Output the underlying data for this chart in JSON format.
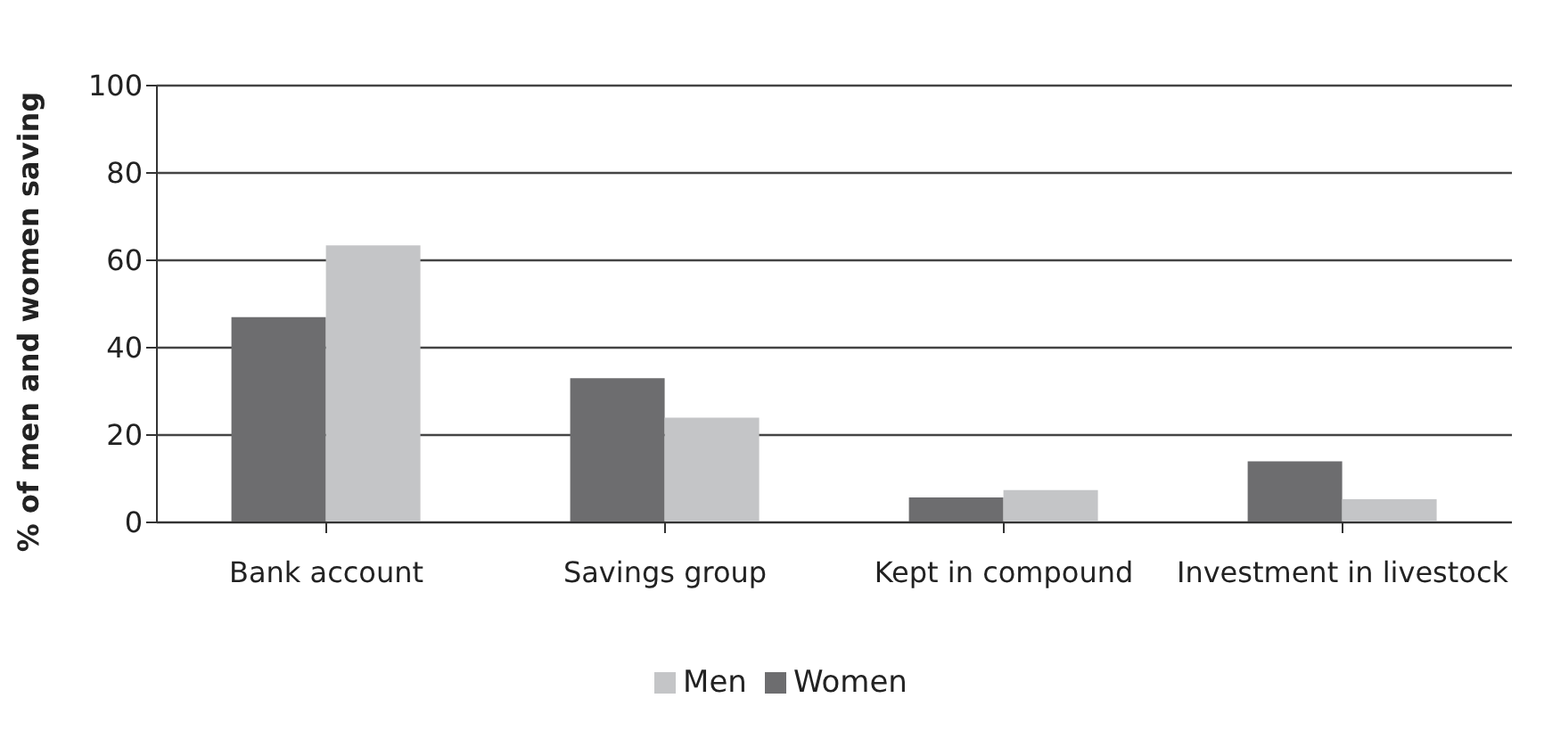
{
  "chart_data": {
    "type": "bar",
    "ylabel": "% of men and women saving",
    "categories": [
      "Bank account",
      "Savings group",
      "Kept in compound",
      "Investment in livestock"
    ],
    "series": [
      {
        "name": "Women",
        "color": "#6d6d6f",
        "values": [
          47,
          33,
          5.7,
          14
        ]
      },
      {
        "name": "Men",
        "color": "#c4c5c7",
        "values": [
          63.4,
          24,
          7.4,
          5.3
        ]
      }
    ],
    "ylim": [
      0,
      100
    ],
    "yticks": [
      0,
      20,
      40,
      60,
      80,
      100
    ],
    "grid": "y",
    "legend": "bottom"
  }
}
